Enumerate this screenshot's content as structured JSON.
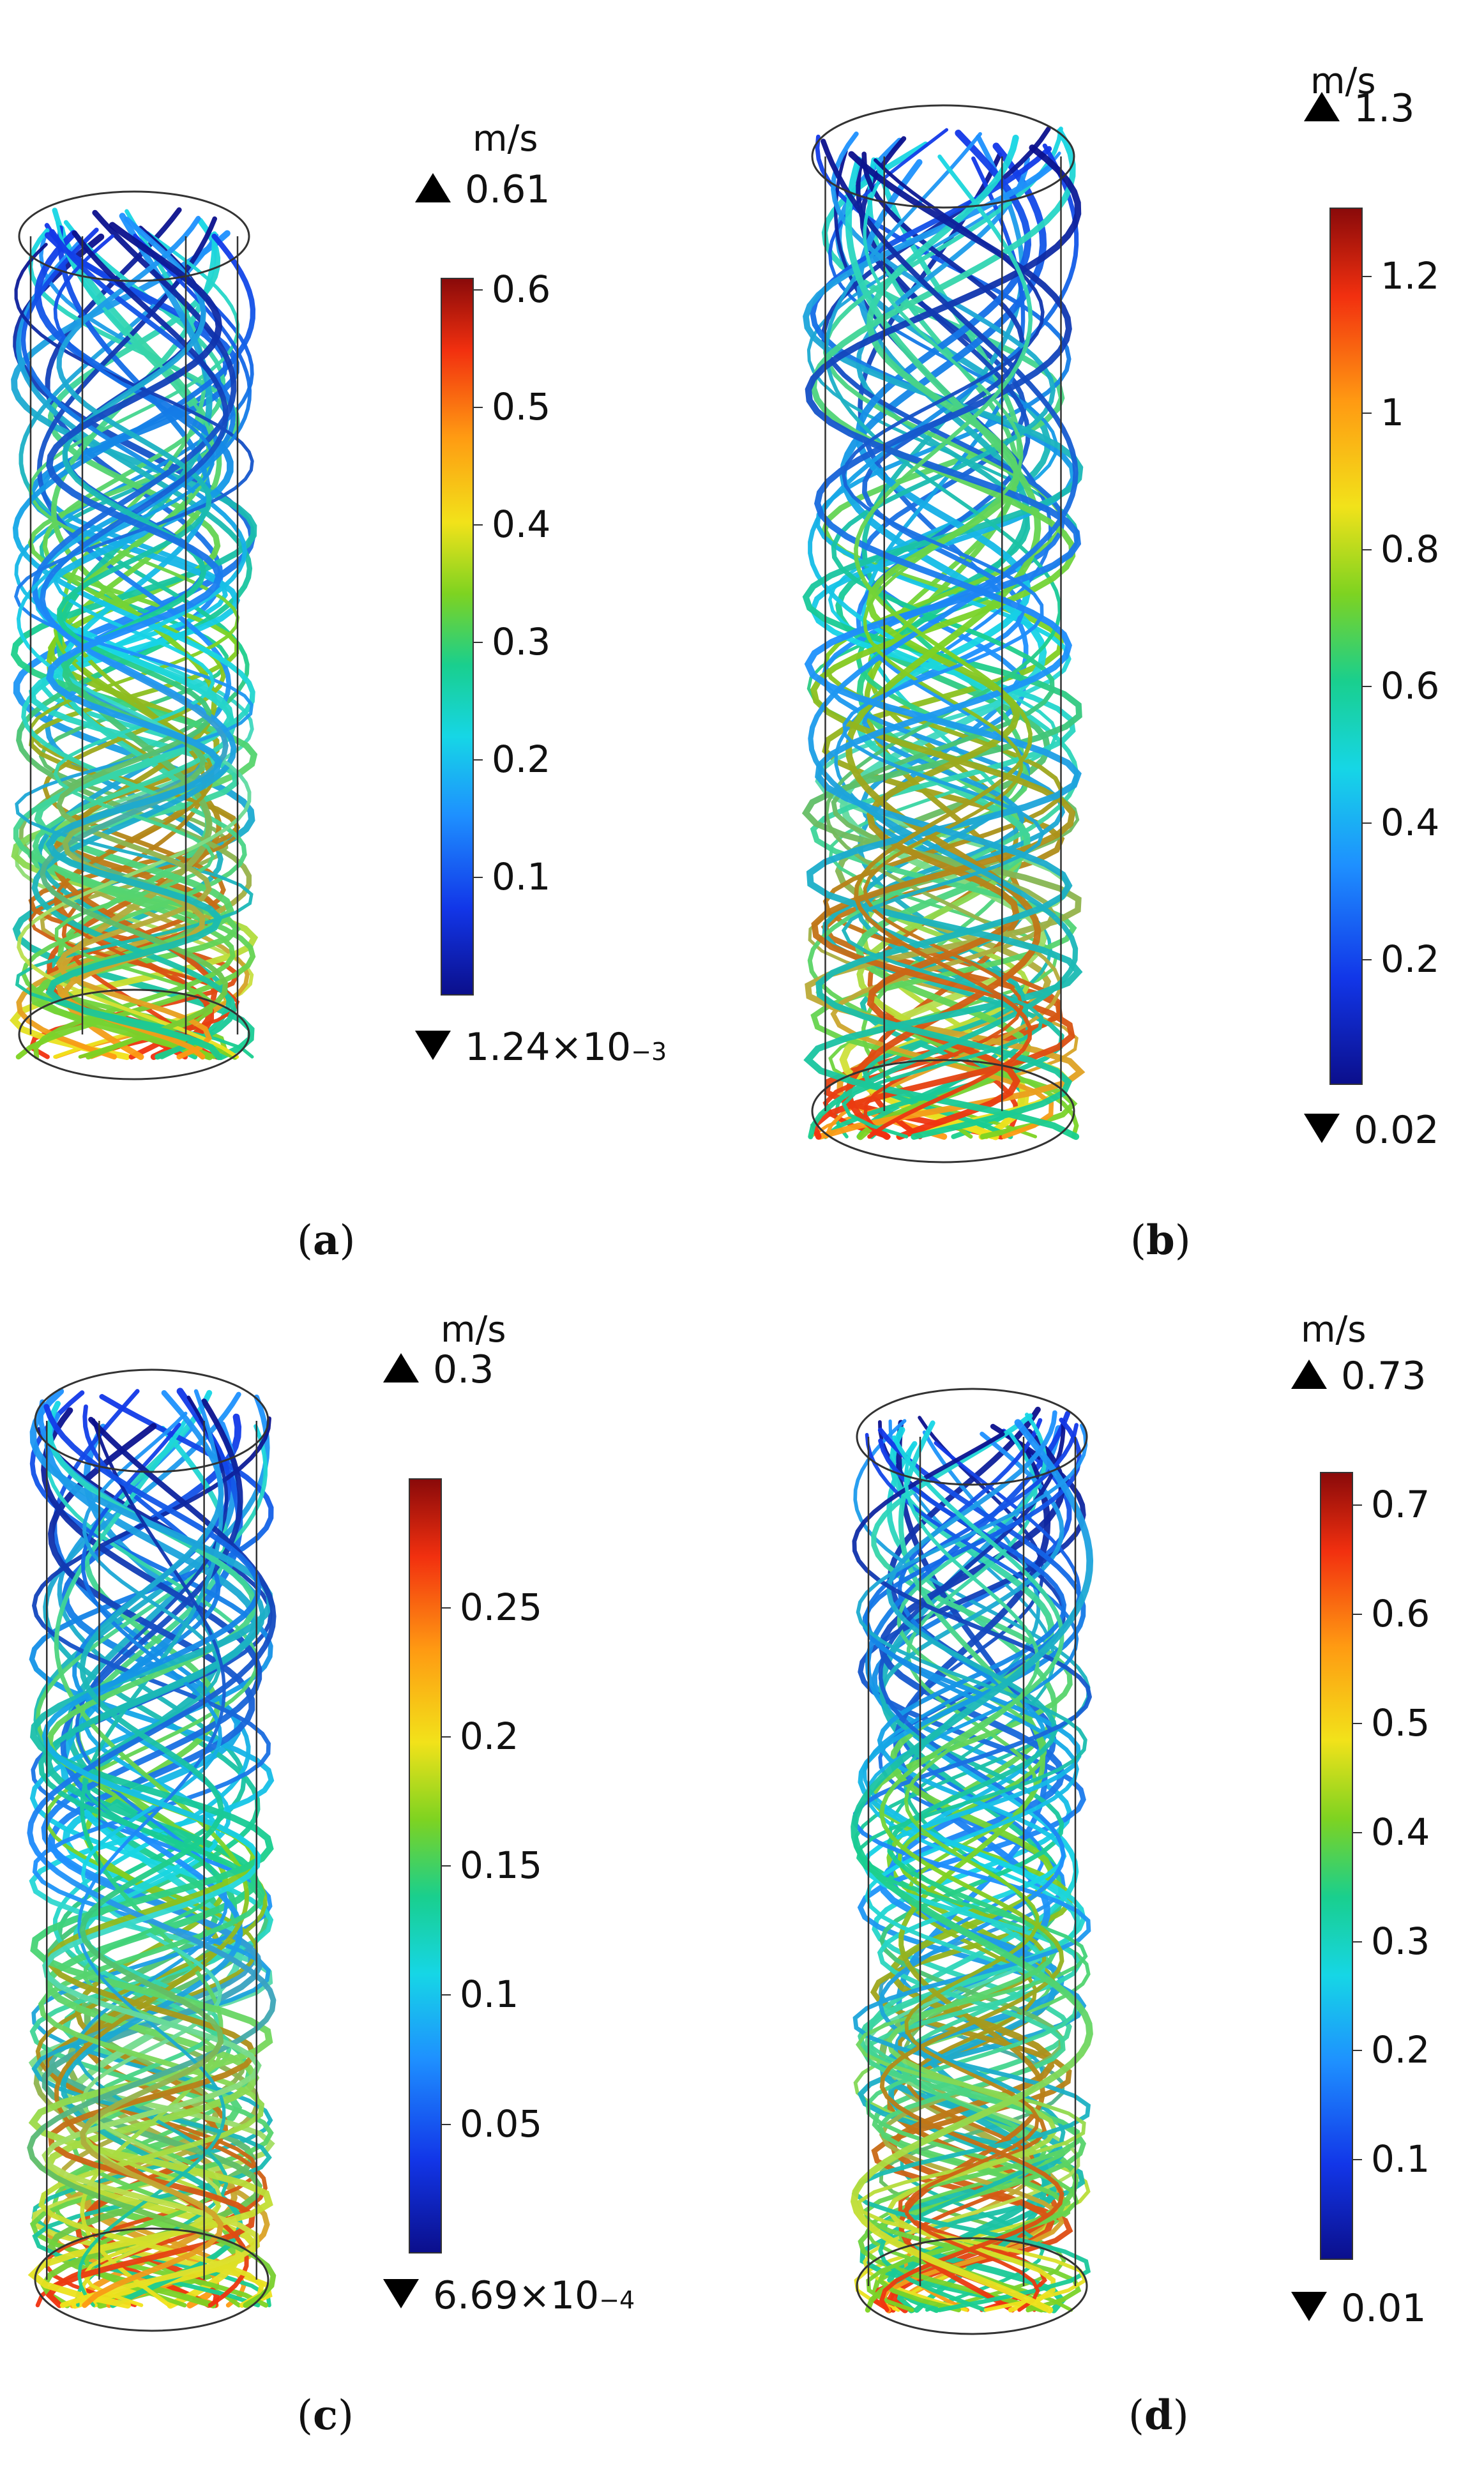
{
  "panels": [
    {
      "id": "a",
      "caption_letter": "a",
      "unit": "m/s",
      "max_label": "0.61",
      "min_label_base": "1.24×10",
      "min_label_exp": "−3",
      "ticks": [
        "0.1",
        "0.2",
        "0.3",
        "0.4",
        "0.5",
        "0.6"
      ],
      "tick_values": [
        0.1,
        0.2,
        0.3,
        0.4,
        0.5,
        0.6
      ],
      "range": [
        0.00124,
        0.61
      ]
    },
    {
      "id": "b",
      "caption_letter": "b",
      "unit": "m/s",
      "max_label": "1.3",
      "min_label_base": "0.02",
      "min_label_exp": "",
      "ticks": [
        "0.2",
        "0.4",
        "0.6",
        "0.8",
        "1",
        "1.2"
      ],
      "tick_values": [
        0.2,
        0.4,
        0.6,
        0.8,
        1.0,
        1.2
      ],
      "range": [
        0.02,
        1.3
      ]
    },
    {
      "id": "c",
      "caption_letter": "c",
      "unit": "m/s",
      "max_label": "0.3",
      "min_label_base": "6.69×10",
      "min_label_exp": "−4",
      "ticks": [
        "0.05",
        "0.1",
        "0.15",
        "0.2",
        "0.25"
      ],
      "tick_values": [
        0.05,
        0.1,
        0.15,
        0.2,
        0.25
      ],
      "range": [
        0.000669,
        0.3
      ]
    },
    {
      "id": "d",
      "caption_letter": "d",
      "unit": "m/s",
      "max_label": "0.73",
      "min_label_base": "0.01",
      "min_label_exp": "",
      "ticks": [
        "0.1",
        "0.2",
        "0.3",
        "0.4",
        "0.5",
        "0.6",
        "0.7"
      ],
      "tick_values": [
        0.1,
        0.2,
        0.3,
        0.4,
        0.5,
        0.6,
        0.7
      ],
      "range": [
        0.01,
        0.73
      ]
    }
  ],
  "colors": {
    "colormap": [
      "#0b0f8c",
      "#1236e8",
      "#1e90ff",
      "#16d6e6",
      "#19cf8e",
      "#7ed321",
      "#f2e21a",
      "#ff9a12",
      "#f2300f",
      "#8a0a0a"
    ],
    "outline": "#333333"
  }
}
